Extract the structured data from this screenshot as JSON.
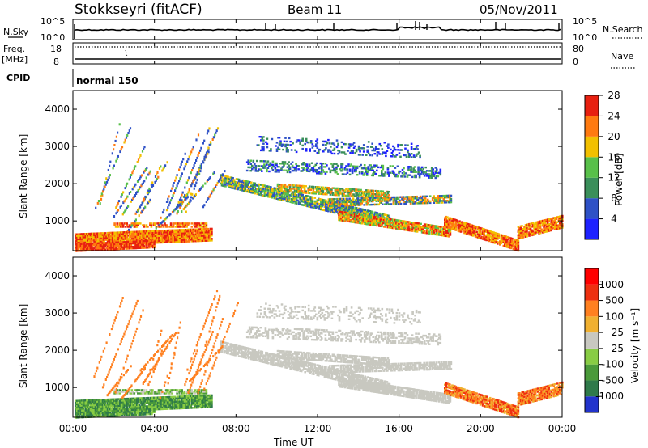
{
  "header": {
    "station": "Stokkseyri (fitACF)",
    "beam": "Beam 11",
    "date": "05/Nov/2011"
  },
  "noise_panel": {
    "label": "N.Sky",
    "left_ticks": [
      "10^5",
      "10^0"
    ],
    "right_ticks": [
      "10^5",
      "10^0"
    ],
    "right_label": "N.Search"
  },
  "freq_panel": {
    "label_line1": "Freq.",
    "label_line2": "[MHz]",
    "left_ticks": [
      "18",
      "8"
    ],
    "right_ticks": [
      "80",
      "0"
    ],
    "right_label": "Nave"
  },
  "cpid_panel": {
    "label": "CPID",
    "mode": "normal 150"
  },
  "chart_data": [
    {
      "type": "heatmap",
      "name": "power",
      "ylabel": "Slant Range [km]",
      "yticks": [
        "1000",
        "2000",
        "3000",
        "4000"
      ],
      "ylim": [
        200,
        4500
      ],
      "xlim_hours": [
        0,
        24
      ],
      "colorbar_label": "Power [dB]",
      "colorbar_ticks": [
        "4",
        "8",
        "12",
        "16",
        "20",
        "24",
        "28"
      ],
      "colors": [
        "#1e22ff",
        "#2e51c6",
        "#3a8f5a",
        "#58c04a",
        "#f2c000",
        "#ff7a10",
        "#e82010"
      ]
    },
    {
      "type": "heatmap",
      "name": "velocity",
      "ylabel": "Slant Range [km]",
      "yticks": [
        "1000",
        "2000",
        "3000",
        "4000"
      ],
      "ylim": [
        200,
        4500
      ],
      "xlim_hours": [
        0,
        24
      ],
      "colorbar_label": "Velocity [m s⁻¹]",
      "colorbar_ticks": [
        "1000",
        "500",
        "100",
        "25",
        "-25",
        "-100",
        "-500",
        "-1000"
      ],
      "colors": [
        "#2233cc",
        "#2f7a4a",
        "#4a9a3a",
        "#88cc44",
        "#c8c8c0",
        "#f0b030",
        "#ff8020",
        "#ee3010",
        "#ff0000"
      ]
    }
  ],
  "xaxis": {
    "ticks": [
      "00:00",
      "04:00",
      "08:00",
      "12:00",
      "16:00",
      "20:00",
      "00:00"
    ],
    "label": "Time UT"
  }
}
